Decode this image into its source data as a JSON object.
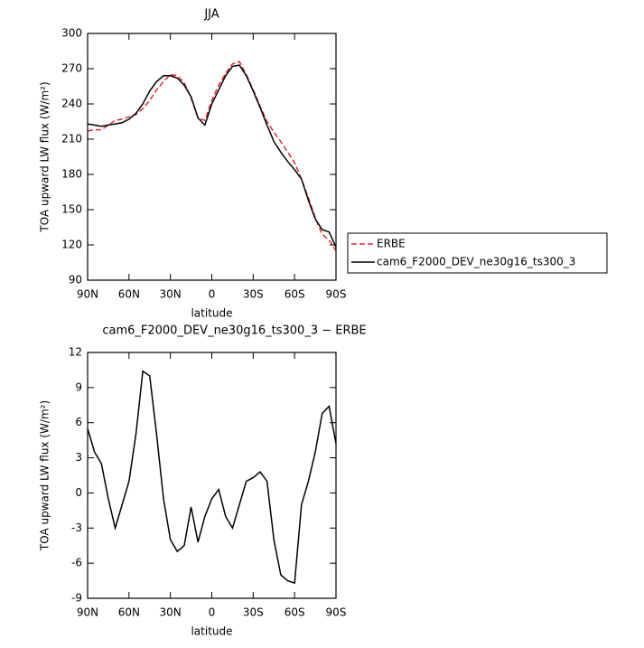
{
  "chart_data": [
    {
      "type": "line",
      "title": "JJA",
      "xlabel": "latitude",
      "ylabel": "TOA upward LW flux (W/m²)",
      "x": [
        90,
        85,
        80,
        75,
        70,
        65,
        60,
        55,
        50,
        45,
        40,
        35,
        30,
        25,
        20,
        15,
        10,
        5,
        0,
        -5,
        -10,
        -15,
        -20,
        -25,
        -30,
        -35,
        -40,
        -45,
        -50,
        -55,
        -60,
        -65,
        -70,
        -75,
        -80,
        -85,
        -90
      ],
      "xlim": [
        90,
        -90
      ],
      "xticks": [
        {
          "value": 90,
          "label": "90N"
        },
        {
          "value": 60,
          "label": "60N"
        },
        {
          "value": 30,
          "label": "30N"
        },
        0,
        {
          "value": -30,
          "label": "30S"
        },
        {
          "value": -60,
          "label": "60S"
        },
        {
          "value": -90,
          "label": "90S"
        }
      ],
      "ylim": [
        90,
        300
      ],
      "yticks": [
        90,
        120,
        150,
        180,
        210,
        240,
        270,
        300
      ],
      "legend": "right",
      "series": [
        {
          "name": "ERBE",
          "color": "#e8262a",
          "line_style": "dashed",
          "values": [
            217,
            218,
            218,
            222,
            226,
            227,
            229,
            231,
            236,
            243,
            252,
            259,
            265,
            264,
            258,
            245,
            228,
            226,
            243,
            256,
            266,
            274,
            276,
            265,
            252,
            238,
            225,
            216,
            208,
            199,
            190,
            176,
            160,
            143,
            129,
            124,
            115
          ]
        },
        {
          "name": "cam6_F2000_DEV_ne30g16_ts300_3",
          "color": "#000000",
          "line_style": "solid",
          "values": [
            223,
            222,
            221,
            222,
            223,
            224,
            227,
            232,
            240,
            251,
            259,
            264,
            264,
            262,
            256,
            246,
            228,
            222,
            240,
            252,
            264,
            272,
            273,
            264,
            251,
            237,
            222,
            208,
            199,
            191,
            184,
            176,
            158,
            142,
            133,
            131,
            118
          ]
        }
      ]
    },
    {
      "type": "line",
      "title": "cam6_F2000_DEV_ne30g16_ts300_3 − ERBE",
      "xlabel": "latitude",
      "ylabel": "TOA upward LW flux (W/m²)",
      "x": [
        90,
        85,
        80,
        75,
        70,
        65,
        60,
        55,
        50,
        45,
        40,
        35,
        30,
        25,
        20,
        15,
        10,
        5,
        0,
        -5,
        -10,
        -15,
        -20,
        -25,
        -30,
        -35,
        -40,
        -45,
        -50,
        -55,
        -60,
        -65,
        -70,
        -75,
        -80,
        -85,
        -90
      ],
      "xlim": [
        90,
        -90
      ],
      "xticks": [
        {
          "value": 90,
          "label": "90N"
        },
        {
          "value": 60,
          "label": "60N"
        },
        {
          "value": 30,
          "label": "30N"
        },
        0,
        {
          "value": -30,
          "label": "30S"
        },
        {
          "value": -60,
          "label": "60S"
        },
        {
          "value": -90,
          "label": "90S"
        }
      ],
      "ylim": [
        -9,
        12
      ],
      "yticks": [
        -9,
        -6,
        -3,
        0,
        3,
        6,
        9,
        12
      ],
      "series": [
        {
          "color": "#000000",
          "line_style": "solid",
          "values": [
            5.5,
            3.5,
            2.5,
            -0.5,
            -3,
            -1,
            1,
            5,
            10.4,
            10,
            5,
            -0.5,
            -4,
            -5,
            -4.5,
            -1.2,
            -4.2,
            -2,
            -0.5,
            0.3,
            -2,
            -3,
            -1,
            1,
            1.3,
            1.8,
            1,
            -4,
            -7,
            -7.5,
            -7.7,
            -1,
            1,
            3.5,
            6.8,
            7.4,
            4.2
          ]
        }
      ]
    }
  ]
}
